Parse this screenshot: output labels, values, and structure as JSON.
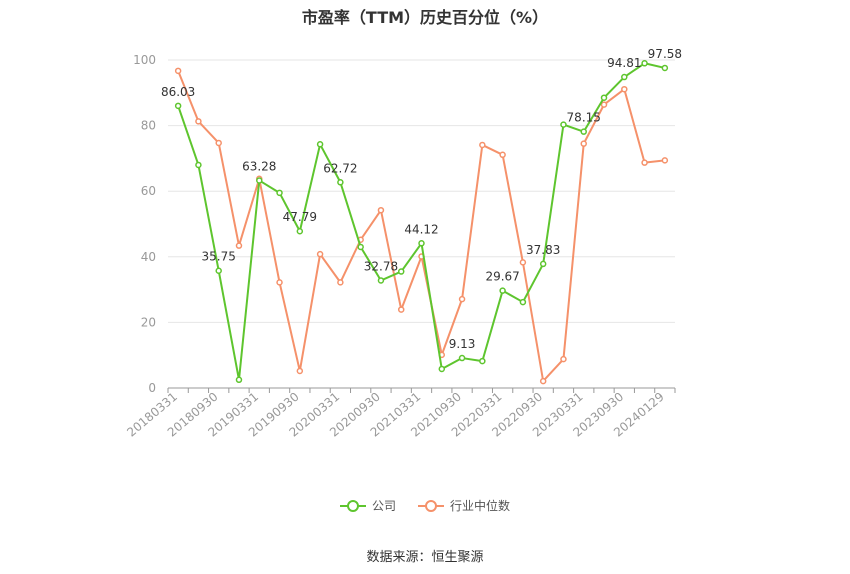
{
  "title": "市盈率（TTM）历史百分位（%）",
  "source": "数据来源：恒生聚源",
  "colors": {
    "company": "#5ec52e",
    "industry": "#f5916a",
    "grid": "#e6e6e6",
    "axis": "#999999"
  },
  "chart_data": {
    "type": "line",
    "x": [
      "20180331",
      "20180630",
      "20180930",
      "20181231",
      "20190331",
      "20190630",
      "20190930",
      "20191231",
      "20200331",
      "20200630",
      "20200930",
      "20201231",
      "20210331",
      "20210630",
      "20210930",
      "20211231",
      "20220331",
      "20220630",
      "20220930",
      "20221231",
      "20230331",
      "20230630",
      "20230930",
      "20231231",
      "20240129"
    ],
    "x_tick_labels": [
      "20180331",
      "20180930",
      "20190331",
      "20190930",
      "20200331",
      "20200930",
      "20210331",
      "20210930",
      "20220331",
      "20220930",
      "20230331",
      "20230930",
      "20240129"
    ],
    "ylim": [
      0,
      100
    ],
    "y_ticks": [
      "0",
      "20",
      "40",
      "60",
      "80",
      "100"
    ],
    "grid": true,
    "legend_position": "bottom",
    "series": [
      {
        "name": "公司",
        "values": [
          86.03,
          68,
          35.75,
          2.5,
          63.28,
          59.5,
          47.79,
          74.3,
          62.72,
          43,
          32.78,
          35.5,
          44.12,
          5.8,
          9.13,
          8.2,
          29.67,
          26.2,
          37.83,
          80.3,
          78.15,
          88.5,
          94.81,
          99,
          97.58
        ],
        "labels": [
          "86.03",
          "",
          "35.75",
          "",
          "63.28",
          "",
          "47.79",
          "",
          "62.72",
          "",
          "32.78",
          "",
          "44.12",
          "",
          "9.13",
          "",
          "29.67",
          "",
          "37.83",
          "",
          "78.15",
          "",
          "94.81",
          "",
          "97.58"
        ]
      },
      {
        "name": "行业中位数",
        "values": [
          96.7,
          81.3,
          74.7,
          43.4,
          63.8,
          32.2,
          5.2,
          40.8,
          32.2,
          45.2,
          54.2,
          23.9,
          40.1,
          10.1,
          27.1,
          74.1,
          71.1,
          38.3,
          2.1,
          8.8,
          74.5,
          86.4,
          91.1,
          68.7,
          69.4
        ],
        "labels": []
      }
    ]
  }
}
